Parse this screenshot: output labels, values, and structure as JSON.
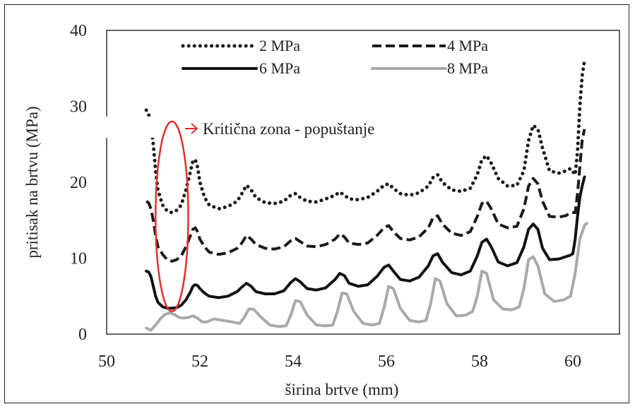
{
  "chart_data": {
    "type": "line",
    "title": "",
    "xlabel": "širina brtve (mm)",
    "ylabel": "pritisak na brtvu (MPa)",
    "xlim": [
      50,
      61
    ],
    "ylim": [
      0,
      40
    ],
    "xticks": [
      50,
      52,
      54,
      56,
      58,
      60
    ],
    "yticks": [
      0,
      10,
      20,
      30,
      40
    ],
    "grid": false,
    "legend_position": "top",
    "annotation": {
      "text": "Kritična zona - popuštanje",
      "color": "#e03030",
      "ellipse_center": [
        51.4,
        15.5
      ],
      "ellipse_radii": [
        0.35,
        12.5
      ]
    },
    "series": [
      {
        "name": "2 MPa",
        "style": "dotted",
        "color": "#1a1a1a",
        "x": [
          50.85,
          50.9,
          50.95,
          51.0,
          51.05,
          51.1,
          51.2,
          51.3,
          51.4,
          51.5,
          51.6,
          51.7,
          51.8,
          51.85,
          51.9,
          51.95,
          52.0,
          52.1,
          52.2,
          52.4,
          52.6,
          52.8,
          52.9,
          53.0,
          53.1,
          53.2,
          53.4,
          53.6,
          53.8,
          53.95,
          54.05,
          54.15,
          54.3,
          54.5,
          54.7,
          54.9,
          55.0,
          55.1,
          55.2,
          55.4,
          55.6,
          55.8,
          55.95,
          56.05,
          56.15,
          56.3,
          56.5,
          56.7,
          56.9,
          57.0,
          57.1,
          57.2,
          57.4,
          57.6,
          57.8,
          57.95,
          58.05,
          58.15,
          58.25,
          58.4,
          58.6,
          58.8,
          58.95,
          59.05,
          59.15,
          59.25,
          59.35,
          59.5,
          59.7,
          59.85,
          59.95,
          60.05,
          60.1,
          60.15,
          60.2,
          60.25
        ],
        "y": [
          29.5,
          29.0,
          27.5,
          25.0,
          21.5,
          19.0,
          17.0,
          16.2,
          16.0,
          16.3,
          17.0,
          19.0,
          21.5,
          22.8,
          23.0,
          22.0,
          20.0,
          18.0,
          17.0,
          16.5,
          16.8,
          17.5,
          18.5,
          19.6,
          19.0,
          18.0,
          17.3,
          17.2,
          17.5,
          18.3,
          18.5,
          18.0,
          17.5,
          17.4,
          17.8,
          18.3,
          18.7,
          18.3,
          17.8,
          17.7,
          18.0,
          18.8,
          19.6,
          19.8,
          19.2,
          18.5,
          18.3,
          18.6,
          19.5,
          20.6,
          21.0,
          20.0,
          19.0,
          18.8,
          19.2,
          21.0,
          23.0,
          23.5,
          22.5,
          20.5,
          19.5,
          19.6,
          21.5,
          25.5,
          27.5,
          27.0,
          24.5,
          21.5,
          21.2,
          21.5,
          21.8,
          21.0,
          24.0,
          30.0,
          34.0,
          36.0
        ]
      },
      {
        "name": "4 MPa",
        "style": "dashed",
        "color": "#1a1a1a",
        "x": [
          50.85,
          50.9,
          50.95,
          51.0,
          51.05,
          51.1,
          51.2,
          51.3,
          51.4,
          51.5,
          51.6,
          51.7,
          51.8,
          51.85,
          51.9,
          51.95,
          52.0,
          52.1,
          52.2,
          52.4,
          52.6,
          52.8,
          52.9,
          53.0,
          53.1,
          53.2,
          53.4,
          53.6,
          53.8,
          53.95,
          54.05,
          54.15,
          54.3,
          54.5,
          54.7,
          54.9,
          55.0,
          55.1,
          55.2,
          55.4,
          55.6,
          55.8,
          55.95,
          56.05,
          56.15,
          56.3,
          56.5,
          56.7,
          56.9,
          57.0,
          57.1,
          57.2,
          57.4,
          57.6,
          57.8,
          57.95,
          58.05,
          58.15,
          58.25,
          58.4,
          58.6,
          58.8,
          58.95,
          59.05,
          59.15,
          59.25,
          59.35,
          59.5,
          59.7,
          59.85,
          59.95,
          60.05,
          60.1,
          60.15,
          60.2,
          60.25
        ],
        "y": [
          17.5,
          17.3,
          16.5,
          15.0,
          13.0,
          11.5,
          10.5,
          9.8,
          9.6,
          9.8,
          10.3,
          11.5,
          13.0,
          13.8,
          14.0,
          13.5,
          12.5,
          11.5,
          10.8,
          10.5,
          10.7,
          11.3,
          12.0,
          13.0,
          12.5,
          11.8,
          11.3,
          11.2,
          11.5,
          12.3,
          12.6,
          12.2,
          11.6,
          11.5,
          11.8,
          12.5,
          13.2,
          12.8,
          12.0,
          11.8,
          12.0,
          13.0,
          14.0,
          14.3,
          13.5,
          12.6,
          12.4,
          12.8,
          14.0,
          15.3,
          15.6,
          14.5,
          13.3,
          13.0,
          13.5,
          15.5,
          17.2,
          17.5,
          16.5,
          14.5,
          14.0,
          14.2,
          16.5,
          19.5,
          20.5,
          19.8,
          17.5,
          15.5,
          15.4,
          15.6,
          16.0,
          16.0,
          18.5,
          22.0,
          25.5,
          27.0
        ]
      },
      {
        "name": "6 MPa",
        "style": "solid",
        "color": "#111111",
        "x": [
          50.85,
          50.9,
          50.95,
          51.0,
          51.05,
          51.1,
          51.2,
          51.3,
          51.4,
          51.5,
          51.6,
          51.7,
          51.8,
          51.85,
          51.9,
          51.95,
          52.0,
          52.1,
          52.2,
          52.4,
          52.6,
          52.8,
          52.9,
          53.0,
          53.1,
          53.2,
          53.4,
          53.6,
          53.8,
          53.95,
          54.05,
          54.15,
          54.3,
          54.5,
          54.7,
          54.9,
          55.0,
          55.1,
          55.2,
          55.4,
          55.6,
          55.8,
          55.95,
          56.05,
          56.15,
          56.3,
          56.5,
          56.7,
          56.9,
          57.0,
          57.1,
          57.2,
          57.4,
          57.6,
          57.8,
          57.95,
          58.05,
          58.15,
          58.25,
          58.4,
          58.6,
          58.8,
          58.95,
          59.05,
          59.15,
          59.25,
          59.35,
          59.5,
          59.7,
          59.85,
          59.95,
          60.0,
          60.05,
          60.1,
          60.15,
          60.2,
          60.25
        ],
        "y": [
          8.3,
          8.2,
          7.6,
          6.3,
          5.0,
          4.2,
          3.6,
          3.4,
          3.4,
          3.5,
          3.8,
          4.5,
          5.6,
          6.3,
          6.5,
          6.4,
          6.0,
          5.4,
          5.0,
          4.8,
          5.0,
          5.6,
          6.2,
          6.7,
          6.3,
          5.6,
          5.3,
          5.3,
          5.7,
          6.8,
          7.3,
          6.9,
          6.0,
          5.8,
          6.1,
          7.2,
          8.0,
          7.7,
          6.7,
          6.3,
          6.5,
          7.6,
          8.8,
          9.1,
          8.3,
          7.2,
          7.0,
          7.5,
          9.0,
          10.3,
          10.6,
          9.5,
          8.1,
          7.8,
          8.3,
          10.3,
          12.1,
          12.5,
          11.5,
          9.5,
          9.0,
          9.4,
          11.5,
          13.8,
          14.5,
          13.8,
          11.3,
          9.8,
          9.9,
          10.2,
          10.4,
          10.6,
          12.5,
          15.5,
          18.0,
          19.5,
          20.7
        ]
      },
      {
        "name": "8 MPa",
        "style": "solid",
        "color": "#a9a9a9",
        "x": [
          50.85,
          50.95,
          51.05,
          51.15,
          51.25,
          51.35,
          51.45,
          51.55,
          51.65,
          51.75,
          51.85,
          51.95,
          52.05,
          52.15,
          52.3,
          52.5,
          52.7,
          52.85,
          52.95,
          53.05,
          53.15,
          53.3,
          53.5,
          53.7,
          53.85,
          53.95,
          54.05,
          54.15,
          54.3,
          54.5,
          54.7,
          54.85,
          54.95,
          55.05,
          55.15,
          55.3,
          55.5,
          55.7,
          55.85,
          55.95,
          56.05,
          56.15,
          56.3,
          56.5,
          56.7,
          56.85,
          56.95,
          57.05,
          57.15,
          57.3,
          57.5,
          57.7,
          57.85,
          57.95,
          58.05,
          58.15,
          58.3,
          58.5,
          58.7,
          58.85,
          58.95,
          59.05,
          59.15,
          59.25,
          59.4,
          59.6,
          59.8,
          59.95,
          60.05,
          60.15,
          60.25,
          60.3
        ],
        "y": [
          0.8,
          0.5,
          1.2,
          2.0,
          2.6,
          2.8,
          2.6,
          2.2,
          2.1,
          2.2,
          2.4,
          2.1,
          1.6,
          1.6,
          2.0,
          1.8,
          1.6,
          1.4,
          2.2,
          3.3,
          3.3,
          2.3,
          1.2,
          1.0,
          1.1,
          2.5,
          4.4,
          4.3,
          2.5,
          1.2,
          1.1,
          1.2,
          3.0,
          5.4,
          5.3,
          3.0,
          1.4,
          1.2,
          1.4,
          3.5,
          6.3,
          6.0,
          3.4,
          1.8,
          1.6,
          1.8,
          4.0,
          7.3,
          7.0,
          4.0,
          2.4,
          2.5,
          3.0,
          5.0,
          8.3,
          8.0,
          4.5,
          3.3,
          3.2,
          3.6,
          6.0,
          9.8,
          10.2,
          9.0,
          5.3,
          4.3,
          4.5,
          5.0,
          8.0,
          12.5,
          14.3,
          14.6
        ]
      }
    ]
  }
}
